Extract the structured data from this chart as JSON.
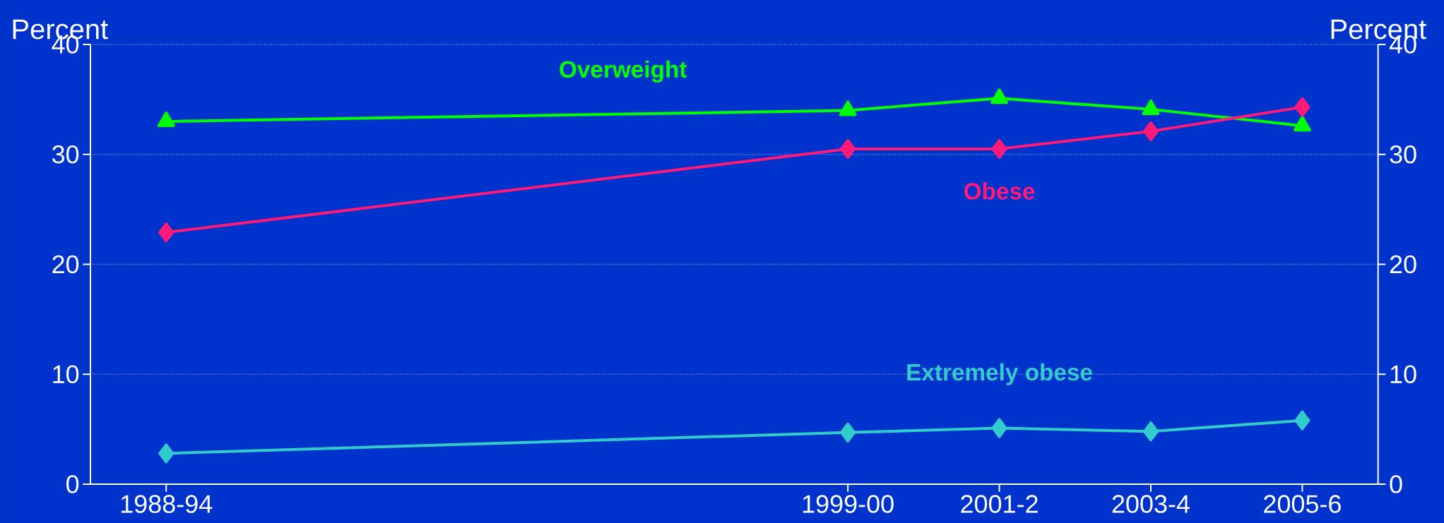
{
  "chart_data": {
    "type": "line",
    "ylabel": "Percent",
    "y2label": "Percent",
    "categories": [
      "1988-94",
      null,
      null,
      null,
      null,
      null,
      null,
      null,
      null,
      "1999-00",
      null,
      "2001-2",
      null,
      "2003-4",
      null,
      "2005-6"
    ],
    "ylim": [
      0,
      40
    ],
    "yticks": [
      0,
      10,
      20,
      30,
      40
    ],
    "y2lim": [
      0,
      40
    ],
    "y2ticks": [
      0,
      10,
      20,
      30,
      40
    ],
    "grid": "y",
    "line_style": "solid",
    "series": [
      {
        "name": "Overweight",
        "color": "#00ff00",
        "marker": "triangle",
        "values": [
          33.0,
          null,
          null,
          null,
          null,
          null,
          null,
          null,
          null,
          34.0,
          null,
          35.1,
          null,
          34.1,
          null,
          32.6
        ]
      },
      {
        "name": "Obese",
        "color": "#ff1a7a",
        "marker": "diamond",
        "values": [
          22.9,
          null,
          null,
          null,
          null,
          null,
          null,
          null,
          null,
          30.5,
          null,
          30.5,
          null,
          32.1,
          null,
          34.3
        ]
      },
      {
        "name": "Extremely obese",
        "color": "#33cccc",
        "marker": "diamond",
        "values": [
          2.8,
          null,
          null,
          null,
          null,
          null,
          null,
          null,
          null,
          4.7,
          null,
          5.1,
          null,
          4.8,
          null,
          5.8
        ]
      }
    ]
  }
}
